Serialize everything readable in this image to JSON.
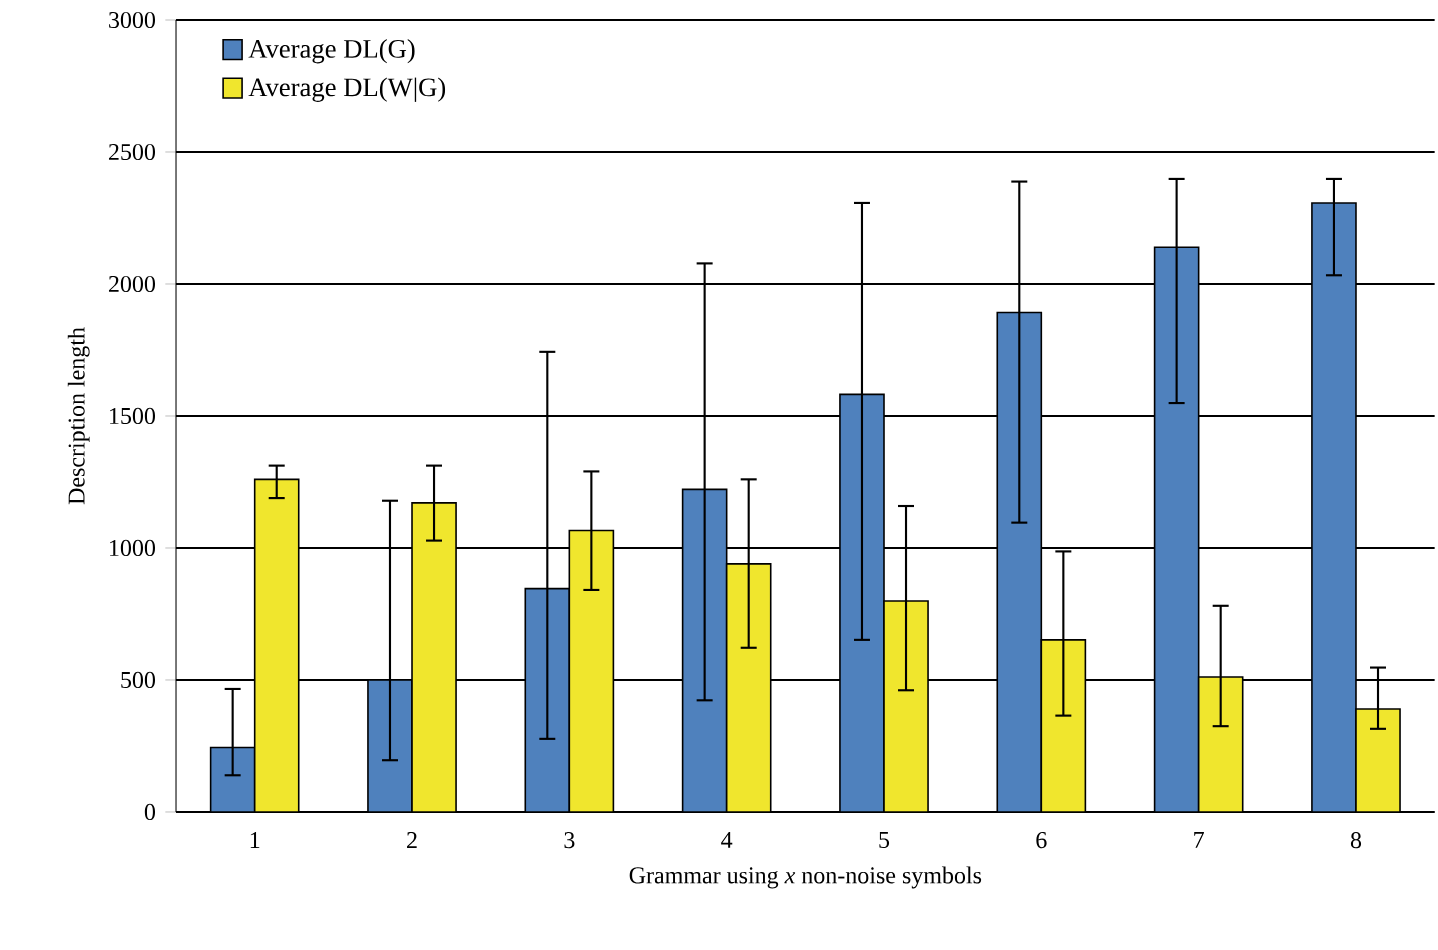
{
  "chart_data": {
    "type": "bar",
    "xlabel": "Grammar using *x* non-noise symbols",
    "ylabel": "Description length",
    "categories": [
      "1",
      "2",
      "3",
      "4",
      "5",
      "6",
      "7",
      "8"
    ],
    "series": [
      {
        "name": "Average DL(G)",
        "color": "#4f81bd",
        "values": [
          244,
          500,
          846,
          1222,
          1582,
          1892,
          2139,
          2307
        ],
        "errors": [
          [
            139,
            466
          ],
          [
            196,
            1179
          ],
          [
            277,
            1743
          ],
          [
            423,
            2078
          ],
          [
            652,
            2307
          ],
          [
            1096,
            2388
          ],
          [
            1549,
            2398
          ],
          [
            2033,
            2398
          ]
        ]
      },
      {
        "name": "Average DL(W|G)",
        "color": "#f0e62d",
        "values": [
          1260,
          1171,
          1066,
          940,
          799,
          652,
          511,
          390
        ],
        "errors": [
          [
            1189,
            1312
          ],
          [
            1028,
            1312
          ],
          [
            841,
            1290
          ],
          [
            622,
            1260
          ],
          [
            461,
            1159
          ],
          [
            365,
            987
          ],
          [
            325,
            781
          ],
          [
            315,
            547
          ]
        ]
      }
    ],
    "ylim": [
      0,
      3000
    ],
    "yticks": [
      0,
      500,
      1000,
      1500,
      2000,
      2500,
      3000
    ],
    "grid": "y",
    "legend": "top left"
  }
}
